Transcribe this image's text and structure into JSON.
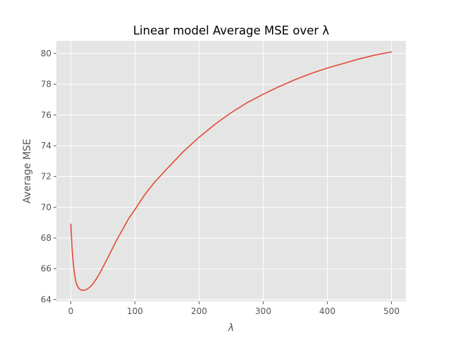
{
  "chart_data": {
    "type": "line",
    "title": "Linear model Average MSE over λ",
    "xlabel": "λ",
    "ylabel": "Average MSE",
    "xlim": [
      -22.5,
      522.5
    ],
    "ylim": [
      63.88,
      80.82
    ],
    "xticks": [
      0,
      100,
      200,
      300,
      400,
      500
    ],
    "yticks": [
      64,
      66,
      68,
      70,
      72,
      74,
      76,
      78,
      80
    ],
    "xtick_labels": [
      "0",
      "100",
      "200",
      "300",
      "400",
      "500"
    ],
    "ytick_labels": [
      "64",
      "66",
      "68",
      "70",
      "72",
      "74",
      "76",
      "78",
      "80"
    ],
    "grid": true,
    "series": [
      {
        "color": "#e24a33",
        "x": [
          0,
          2,
          4,
          6,
          8,
          10,
          13,
          16,
          19,
          22,
          25,
          28,
          31,
          35,
          40,
          45,
          50,
          60,
          70,
          80,
          90,
          100,
          115,
          130,
          150,
          175,
          200,
          225,
          250,
          275,
          300,
          325,
          350,
          375,
          400,
          425,
          450,
          475,
          500
        ],
        "y": [
          68.9,
          67.3,
          66.3,
          65.6,
          65.15,
          64.9,
          64.7,
          64.62,
          64.6,
          64.62,
          64.66,
          64.75,
          64.85,
          65.05,
          65.35,
          65.7,
          66.1,
          66.9,
          67.75,
          68.5,
          69.25,
          69.85,
          70.8,
          71.6,
          72.5,
          73.6,
          74.55,
          75.4,
          76.15,
          76.8,
          77.35,
          77.85,
          78.3,
          78.7,
          79.05,
          79.35,
          79.65,
          79.9,
          80.1
        ]
      }
    ]
  }
}
